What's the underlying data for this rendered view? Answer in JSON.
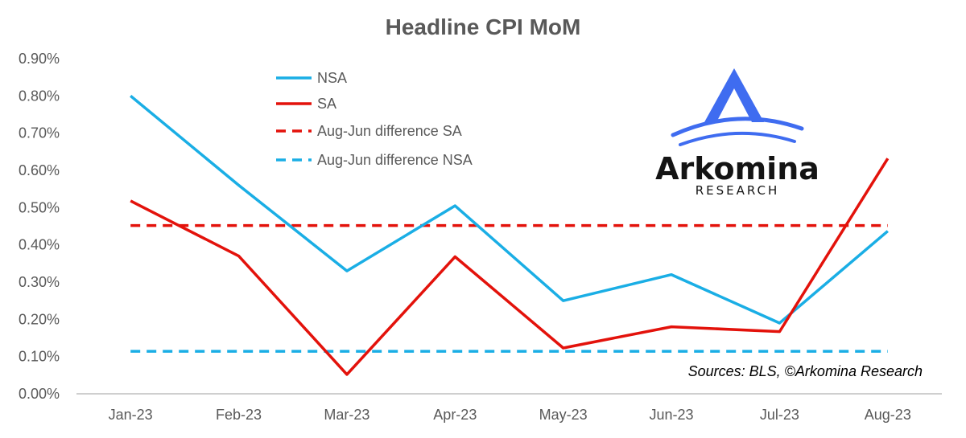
{
  "chart_data": {
    "type": "line",
    "title": "Headline CPI MoM",
    "categories": [
      "Jan-23",
      "Feb-23",
      "Mar-23",
      "Apr-23",
      "May-23",
      "Jun-23",
      "Jul-23",
      "Aug-23"
    ],
    "ylim": [
      0,
      0.9
    ],
    "yticks": [
      "0.00%",
      "0.10%",
      "0.20%",
      "0.30%",
      "0.40%",
      "0.50%",
      "0.60%",
      "0.70%",
      "0.80%",
      "0.90%"
    ],
    "grid": false,
    "legend_position": "top-left",
    "series": [
      {
        "name": "NSA",
        "style": "solid",
        "color": "#1AAEE5",
        "values": [
          0.8,
          0.56,
          0.33,
          0.505,
          0.25,
          0.32,
          0.19,
          0.437
        ]
      },
      {
        "name": "SA",
        "style": "solid",
        "color": "#E3120B",
        "values": [
          0.518,
          0.37,
          0.052,
          0.368,
          0.123,
          0.18,
          0.167,
          0.632
        ]
      },
      {
        "name": "Aug-Jun difference SA",
        "style": "dashed",
        "color": "#E3120B",
        "values": [
          0.452,
          0.452,
          0.452,
          0.452,
          0.452,
          0.452,
          0.452,
          0.452
        ]
      },
      {
        "name": "Aug-Jun difference NSA",
        "style": "dashed",
        "color": "#1AAEE5",
        "values": [
          0.114,
          0.114,
          0.114,
          0.114,
          0.114,
          0.114,
          0.114,
          0.114
        ]
      }
    ],
    "annotation": "Sources: BLS, ©Arkomina Research"
  },
  "logo": {
    "name": "Arkomina",
    "subtitle": "RESEARCH",
    "colors": {
      "accent": "#3F6CF0",
      "text": "#141414"
    }
  },
  "colors": {
    "axis": "#BFBFBF",
    "text": "#595959",
    "background": "#FFFFFF"
  }
}
